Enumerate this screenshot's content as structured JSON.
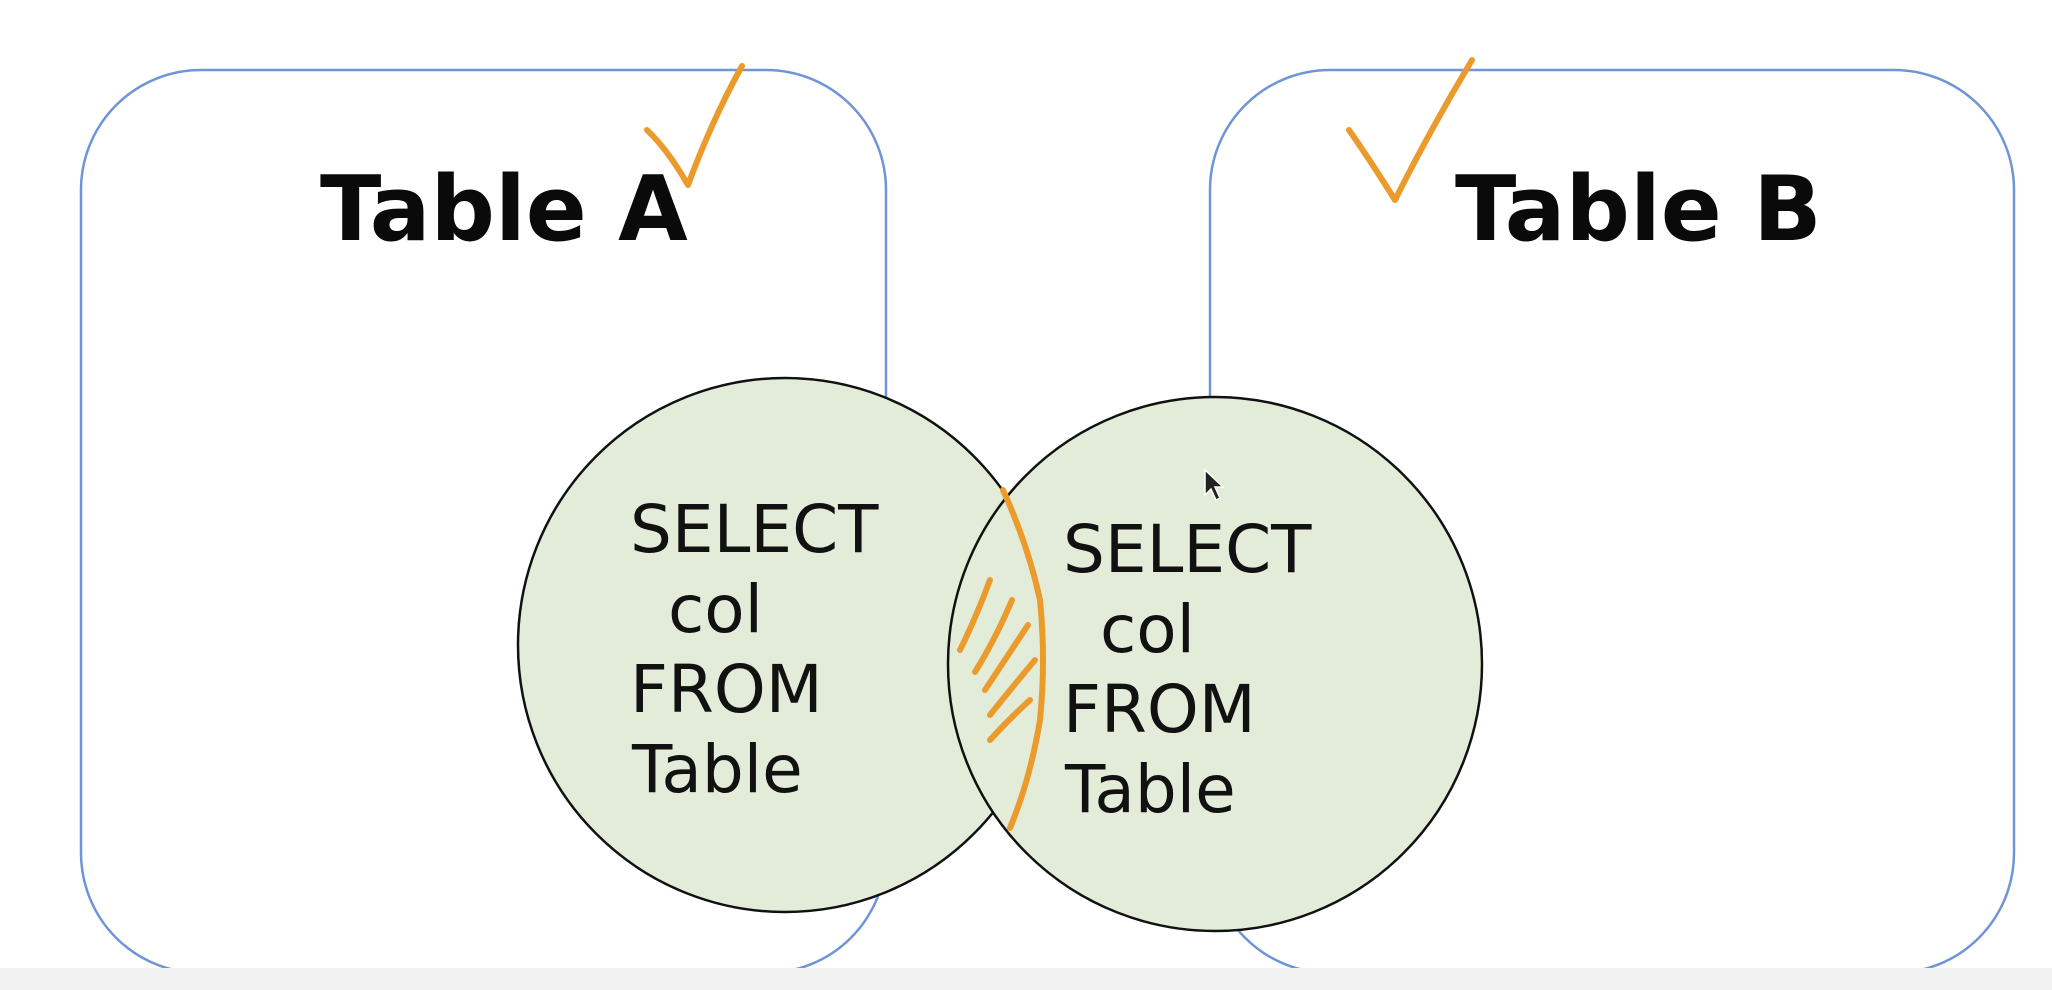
{
  "table_a": {
    "title": "Table A"
  },
  "table_b": {
    "title": "Table B"
  },
  "query_a": {
    "lines": [
      "SELECT",
      "col",
      "FROM",
      "Table"
    ]
  },
  "query_b": {
    "lines": [
      "SELECT",
      "col",
      "FROM",
      "Table"
    ]
  },
  "colors": {
    "box_border": "#6f95d6",
    "circle_fill": "#e2ecd9",
    "annotation": "#eb9a2c"
  },
  "icons": [
    "check-mark-icon",
    "mouse-cursor-icon"
  ]
}
